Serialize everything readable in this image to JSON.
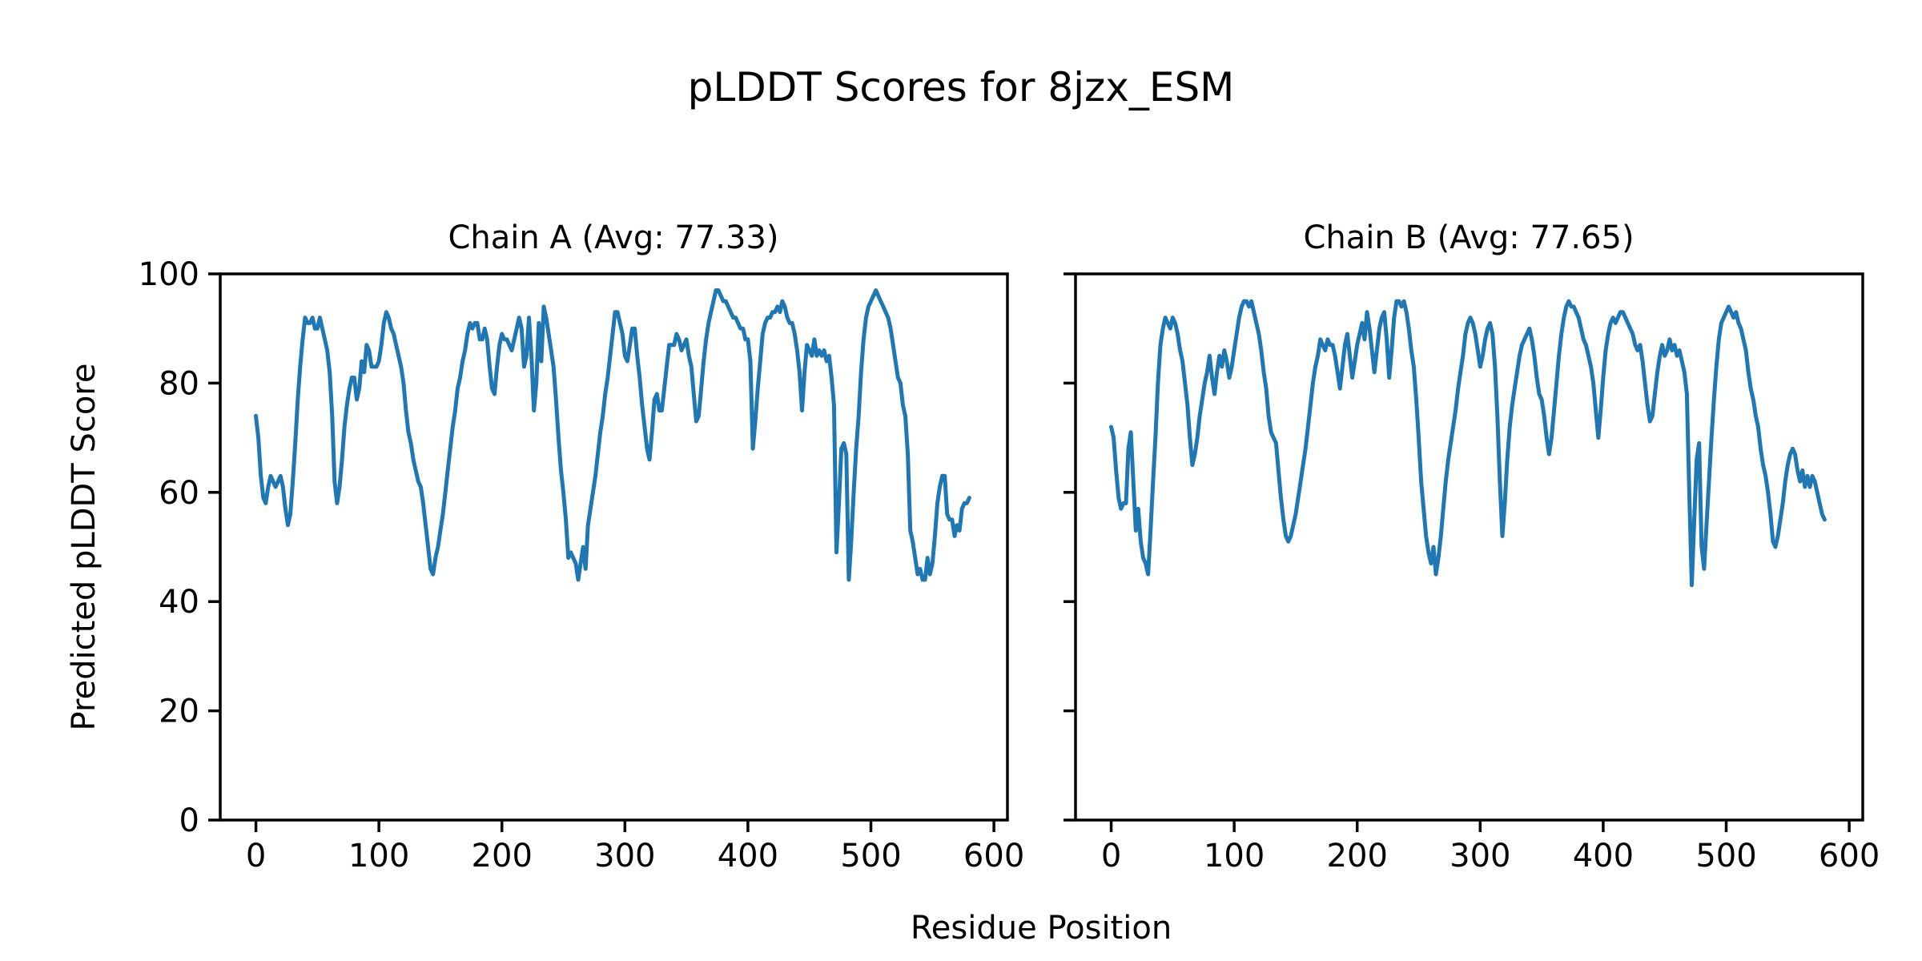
{
  "figure": {
    "title": "pLDDT Scores for 8jzx_ESM",
    "xlabel": "Residue Position",
    "ylabel": "Predicted pLDDT Score",
    "background_color": "#ffffff",
    "text_color": "#000000"
  },
  "chart_data": [
    {
      "type": "line",
      "title": "Chain A (Avg: 77.33)",
      "chain": "A",
      "avg_plddt": 77.33,
      "line_color": "#1f77b4",
      "grid": false,
      "legend": "none",
      "xlim": [
        -29,
        611
      ],
      "ylim": [
        0,
        100
      ],
      "x_ticks": [
        0,
        100,
        200,
        300,
        400,
        500,
        600
      ],
      "y_ticks": [
        0,
        20,
        40,
        60,
        80,
        100
      ],
      "series": [
        {
          "name": "pLDDT",
          "x_start": 0,
          "x_step": 2,
          "values": [
            74,
            70,
            63,
            59,
            58,
            61,
            63,
            62,
            61,
            62,
            63,
            61,
            57,
            54,
            56,
            62,
            69,
            77,
            83,
            88,
            92,
            91,
            91,
            92,
            90,
            90,
            92,
            90,
            88,
            86,
            82,
            74,
            62,
            58,
            61,
            66,
            72,
            76,
            79,
            81,
            81,
            77,
            79,
            84,
            82,
            87,
            86,
            83,
            83,
            83,
            84,
            87,
            91,
            93,
            92,
            90,
            89,
            87,
            85,
            83,
            80,
            75,
            71,
            69,
            66,
            64,
            62,
            61,
            58,
            54,
            50,
            46,
            45,
            48,
            50,
            53,
            56,
            60,
            64,
            68,
            72,
            75,
            79,
            81,
            84,
            86,
            89,
            91,
            90,
            91,
            91,
            88,
            88,
            90,
            88,
            83,
            79,
            78,
            83,
            87,
            89,
            88,
            88,
            87,
            86,
            88,
            90,
            92,
            90,
            83,
            85,
            92,
            85,
            75,
            80,
            91,
            84,
            94,
            92,
            89,
            86,
            83,
            77,
            70,
            64,
            60,
            55,
            48,
            49,
            48,
            47,
            44,
            47,
            50,
            46,
            54,
            57,
            60,
            63,
            67,
            71,
            74,
            78,
            81,
            85,
            89,
            93,
            93,
            91,
            89,
            85,
            84,
            87,
            90,
            90,
            85,
            81,
            76,
            72,
            68,
            66,
            71,
            77,
            78,
            75,
            75,
            79,
            83,
            87,
            87,
            87,
            89,
            88,
            86,
            87,
            88,
            85,
            83,
            78,
            73,
            74,
            79,
            84,
            88,
            91,
            93,
            95,
            97,
            97,
            96,
            95,
            95,
            94,
            93,
            92,
            92,
            91,
            90,
            90,
            88,
            88,
            84,
            68,
            73,
            79,
            84,
            89,
            91,
            92,
            92,
            93,
            93,
            94,
            93,
            95,
            94,
            92,
            91,
            91,
            89,
            86,
            82,
            75,
            82,
            87,
            86,
            85,
            88,
            85,
            86,
            85,
            86,
            84,
            85,
            81,
            76,
            49,
            58,
            68,
            69,
            67,
            44,
            51,
            60,
            68,
            74,
            82,
            88,
            92,
            94,
            95,
            96,
            97,
            96,
            95,
            94,
            93,
            92,
            90,
            87,
            84,
            81,
            80,
            76,
            74,
            67,
            53,
            51,
            48,
            45,
            46,
            44,
            44,
            48,
            45,
            47,
            52,
            58,
            61,
            63,
            63,
            56,
            55,
            55,
            52,
            54,
            53,
            57,
            58,
            58,
            59
          ]
        }
      ]
    },
    {
      "type": "line",
      "title": "Chain B (Avg: 77.65)",
      "chain": "B",
      "avg_plddt": 77.65,
      "line_color": "#1f77b4",
      "grid": false,
      "legend": "none",
      "xlim": [
        -29,
        611
      ],
      "ylim": [
        0,
        100
      ],
      "x_ticks": [
        0,
        100,
        200,
        300,
        400,
        500,
        600
      ],
      "y_ticks": [
        0,
        20,
        40,
        60,
        80,
        100
      ],
      "series": [
        {
          "name": "pLDDT",
          "x_start": 0,
          "x_step": 2,
          "values": [
            72,
            70,
            64,
            59,
            57,
            58,
            58,
            68,
            71,
            62,
            53,
            57,
            51,
            48,
            47,
            45,
            53,
            62,
            70,
            80,
            87,
            90,
            92,
            91,
            90,
            92,
            91,
            89,
            86,
            84,
            80,
            76,
            70,
            65,
            67,
            70,
            74,
            77,
            80,
            82,
            85,
            81,
            78,
            82,
            85,
            83,
            86,
            84,
            81,
            83,
            86,
            89,
            92,
            94,
            95,
            95,
            94,
            95,
            93,
            91,
            89,
            86,
            82,
            79,
            74,
            71,
            70,
            69,
            64,
            59,
            55,
            52,
            51,
            52,
            54,
            56,
            59,
            62,
            65,
            68,
            72,
            76,
            80,
            83,
            85,
            88,
            87,
            86,
            88,
            87,
            87,
            85,
            82,
            79,
            83,
            87,
            89,
            85,
            81,
            84,
            87,
            89,
            91,
            88,
            93,
            90,
            86,
            82,
            86,
            90,
            92,
            93,
            88,
            81,
            86,
            92,
            95,
            95,
            94,
            95,
            93,
            90,
            86,
            83,
            77,
            70,
            62,
            57,
            52,
            49,
            47,
            50,
            45,
            48,
            52,
            57,
            62,
            66,
            69,
            72,
            75,
            79,
            82,
            85,
            89,
            91,
            92,
            91,
            89,
            86,
            83,
            85,
            88,
            90,
            91,
            89,
            83,
            74,
            62,
            52,
            58,
            66,
            72,
            76,
            79,
            82,
            85,
            87,
            88,
            89,
            90,
            88,
            85,
            81,
            78,
            77,
            74,
            70,
            67,
            70,
            75,
            80,
            85,
            89,
            92,
            94,
            95,
            94,
            94,
            93,
            92,
            90,
            88,
            87,
            85,
            83,
            80,
            75,
            70,
            75,
            81,
            86,
            89,
            91,
            92,
            91,
            92,
            93,
            93,
            92,
            91,
            90,
            89,
            87,
            86,
            87,
            84,
            80,
            76,
            73,
            74,
            78,
            82,
            85,
            87,
            85,
            86,
            88,
            86,
            87,
            85,
            86,
            84,
            82,
            78,
            60,
            43,
            55,
            66,
            69,
            50,
            46,
            54,
            62,
            70,
            77,
            83,
            88,
            91,
            92,
            93,
            94,
            93,
            92,
            93,
            91,
            90,
            88,
            86,
            82,
            79,
            77,
            74,
            72,
            68,
            65,
            63,
            60,
            56,
            51,
            50,
            52,
            55,
            58,
            62,
            65,
            67,
            68,
            67,
            64,
            62,
            64,
            61,
            63,
            61,
            63,
            62,
            60,
            58,
            56,
            55
          ]
        }
      ]
    }
  ]
}
